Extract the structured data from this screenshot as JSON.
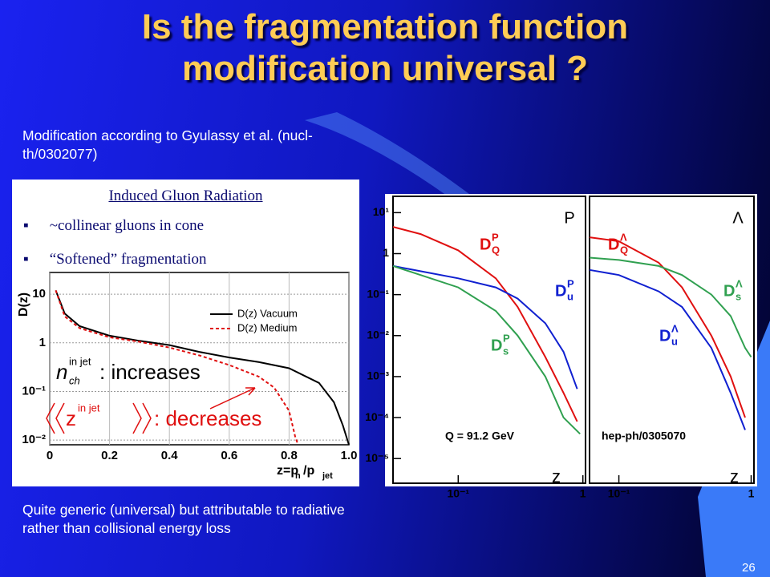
{
  "slide": {
    "title": "Is the fragmentation function modification universal ?",
    "note_top": "Modification according to Gyulassy et al. (nucl-th/0302077)",
    "box_heading": "Induced Gluon Radiation",
    "bullets": [
      "~collinear gluons in cone",
      "“Softened” fragmentation"
    ],
    "note_bottom": "Quite generic (universal) but attributable to radiative rather than collisional energy loss",
    "page_number": "26"
  },
  "chart_data": [
    {
      "type": "line",
      "y_label": "D(z)",
      "x_label": [
        "z=p",
        "h",
        "/p",
        "jet"
      ],
      "log_y": true,
      "grid": true,
      "xlim": [
        0,
        1.0
      ],
      "xticks": [
        0,
        0.2,
        0.4,
        0.6,
        0.8,
        {
          "value": 1,
          "label": "1.0"
        }
      ],
      "ylim": [
        0.008,
        28
      ],
      "yticks": [
        10,
        1,
        {
          "value": 0.1,
          "label": "10⁻¹"
        },
        {
          "value": 0.01,
          "label": "10⁻²"
        }
      ],
      "series": [
        {
          "name": "D(z) Vacuum",
          "color": "#000000",
          "x": [
            0.02,
            0.05,
            0.1,
            0.2,
            0.3,
            0.4,
            0.5,
            0.6,
            0.7,
            0.8,
            0.9,
            0.95,
            0.98,
            1.0
          ],
          "values": [
            12,
            4,
            2.2,
            1.4,
            1.1,
            0.9,
            0.65,
            0.5,
            0.4,
            0.3,
            0.15,
            0.06,
            0.02,
            0.008
          ]
        },
        {
          "name": "D(z) Medium",
          "color": "#e01010",
          "x": [
            0.02,
            0.05,
            0.1,
            0.2,
            0.3,
            0.4,
            0.5,
            0.6,
            0.7,
            0.75,
            0.8,
            0.82,
            0.83
          ],
          "values": [
            12,
            3.5,
            2.0,
            1.3,
            1.05,
            0.8,
            0.55,
            0.35,
            0.2,
            0.12,
            0.04,
            0.012,
            0.008
          ]
        }
      ],
      "annotations": [
        {
          "text": "n",
          "sup": "in jet",
          "sub": "ch",
          "after": ": increases"
        },
        {
          "text": "z",
          "sup": "in jet",
          "after": ": decreases"
        }
      ]
    },
    {
      "type": "line",
      "log_x": true,
      "log_y": true,
      "corner_label": "P",
      "note": "Q = 91.2 GeV",
      "x_label": "z",
      "xlim": [
        0.03,
        1.05
      ],
      "xticks": [
        {
          "value": 0.1,
          "label": "10⁻¹"
        },
        1
      ],
      "ylim": [
        2.5e-06,
        25
      ],
      "yticks": [
        {
          "value": 10,
          "label": "10¹"
        },
        1,
        {
          "value": 0.1,
          "label": "10⁻¹"
        },
        {
          "value": 0.01,
          "label": "10⁻²"
        },
        {
          "value": 0.001,
          "label": "10⁻³"
        },
        {
          "value": 0.0001,
          "label": "10⁻⁴"
        },
        {
          "value": 1e-05,
          "label": "10⁻⁵"
        }
      ],
      "series": [
        {
          "name": "D",
          "sub": "Q",
          "sup": "P",
          "color": "#e01010",
          "x": [
            0.03,
            0.05,
            0.1,
            0.2,
            0.3,
            0.5,
            0.7,
            0.9
          ],
          "values": [
            4.5,
            3,
            1.2,
            0.25,
            0.05,
            0.003,
            0.0004,
            8e-05
          ]
        },
        {
          "name": "D",
          "sub": "u",
          "sup": "P",
          "color": "#1020d0",
          "x": [
            0.03,
            0.1,
            0.2,
            0.3,
            0.5,
            0.7,
            0.9
          ],
          "values": [
            0.5,
            0.25,
            0.15,
            0.08,
            0.02,
            0.004,
            0.0005
          ]
        },
        {
          "name": "D",
          "sub": "s",
          "sup": "P",
          "color": "#30a050",
          "x": [
            0.03,
            0.1,
            0.2,
            0.3,
            0.5,
            0.7,
            0.95
          ],
          "values": [
            0.5,
            0.15,
            0.04,
            0.01,
            0.001,
            0.0001,
            4e-05
          ]
        }
      ]
    },
    {
      "type": "line",
      "log_x": true,
      "log_y": true,
      "corner_label": "Λ",
      "note": "hep-ph/0305070",
      "x_label": "z",
      "xlim": [
        0.06,
        1.05
      ],
      "xticks": [
        {
          "value": 0.1,
          "label": "10⁻¹"
        },
        1
      ],
      "ylim": [
        2.5e-06,
        25
      ],
      "series": [
        {
          "name": "D",
          "sub": "Q",
          "sup": "Λ",
          "color": "#e01010",
          "x": [
            0.06,
            0.1,
            0.2,
            0.3,
            0.5,
            0.7,
            0.9
          ],
          "values": [
            2.5,
            2,
            0.6,
            0.15,
            0.01,
            0.001,
            0.0001
          ]
        },
        {
          "name": "D",
          "sub": "s",
          "sup": "Λ",
          "color": "#30a050",
          "x": [
            0.06,
            0.1,
            0.2,
            0.3,
            0.5,
            0.7,
            0.9,
            1.0
          ],
          "values": [
            0.8,
            0.7,
            0.5,
            0.3,
            0.1,
            0.03,
            0.005,
            0.003
          ]
        },
        {
          "name": "D",
          "sub": "u",
          "sup": "Λ",
          "color": "#1020d0",
          "x": [
            0.06,
            0.1,
            0.2,
            0.3,
            0.5,
            0.7,
            0.9
          ],
          "values": [
            0.4,
            0.3,
            0.12,
            0.05,
            0.005,
            0.0004,
            5e-05
          ]
        }
      ]
    }
  ]
}
